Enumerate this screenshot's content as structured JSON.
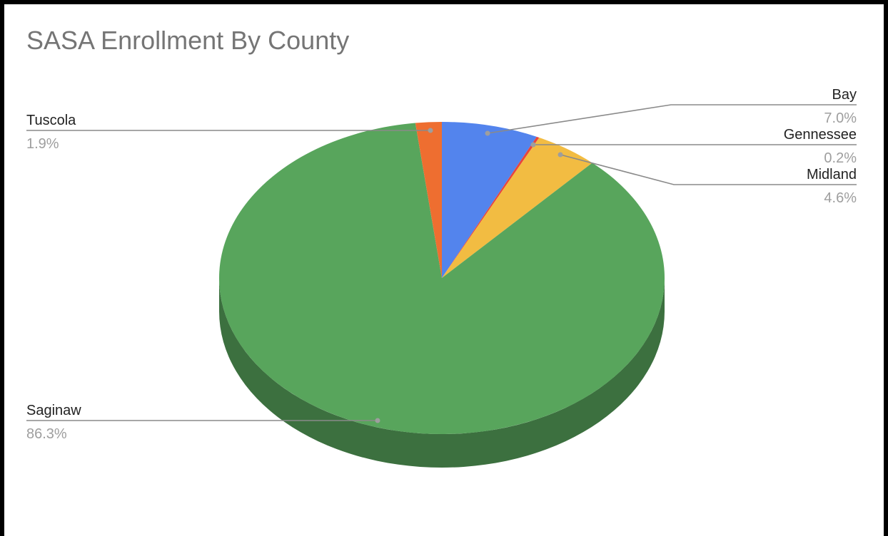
{
  "chart_data": {
    "type": "pie",
    "title": "SASA Enrollment By County",
    "slices": [
      {
        "label": "Bay",
        "percent_label": "7.0%",
        "value": 7.0,
        "color": "#5384ed",
        "side": "right"
      },
      {
        "label": "Gennessee",
        "percent_label": "0.2%",
        "value": 0.2,
        "color": "#e8453c",
        "side": "right"
      },
      {
        "label": "Midland",
        "percent_label": "4.6%",
        "value": 4.6,
        "color": "#f2bc42",
        "side": "right"
      },
      {
        "label": "Saginaw",
        "percent_label": "86.3%",
        "value": 86.3,
        "color": "#58a55c",
        "side": "left"
      },
      {
        "label": "Tuscola",
        "percent_label": "1.9%",
        "value": 1.9,
        "color": "#ee6e30",
        "side": "left"
      }
    ],
    "three_d": true,
    "legend": "labeled"
  }
}
